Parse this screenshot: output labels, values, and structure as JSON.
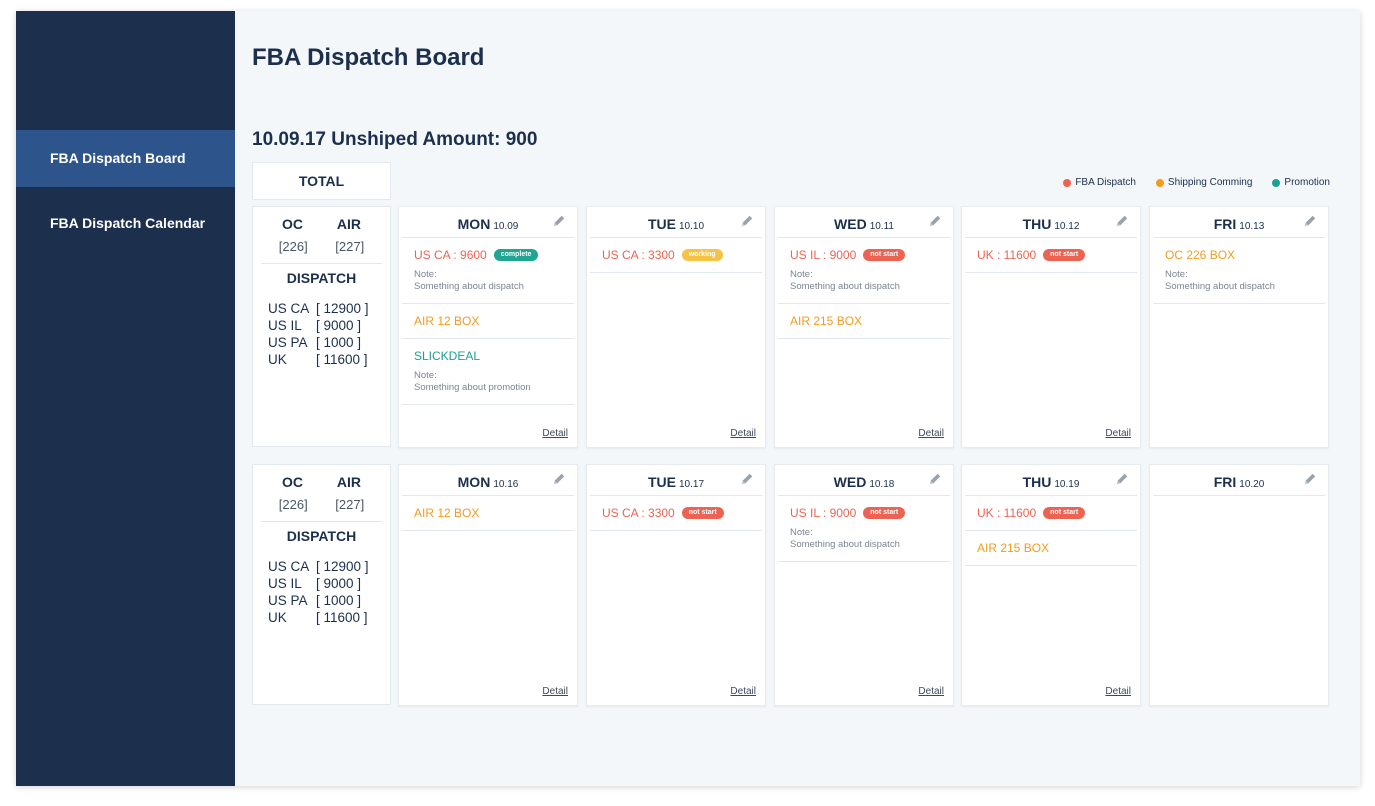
{
  "sidebar": {
    "items": [
      {
        "label": "FBA Dispatch Board",
        "active": true
      },
      {
        "label": "FBA Dispatch Calendar",
        "active": false
      }
    ]
  },
  "header": {
    "title": "FBA Dispatch Board",
    "subtitle": "10.09.17 Unshiped Amount: 900"
  },
  "total_label": "TOTAL",
  "legend": [
    {
      "label": "FBA Dispatch",
      "color": "#ec6353"
    },
    {
      "label": "Shipping Comming",
      "color": "#f29c1f"
    },
    {
      "label": "Promotion",
      "color": "#1e9f93"
    }
  ],
  "weeks": [
    {
      "summary": {
        "oc_label": "OC",
        "air_label": "AIR",
        "oc_value": "[226]",
        "air_value": "[227]",
        "dispatch_label": "DISPATCH",
        "rows": [
          {
            "key": "US CA",
            "value": "[ 12900 ]"
          },
          {
            "key": "US IL",
            "value": "[ 9000 ]"
          },
          {
            "key": "US PA",
            "value": "[ 1000 ]"
          },
          {
            "key": "UK",
            "value": "[ 11600 ]"
          }
        ]
      },
      "days": [
        {
          "name": "MON",
          "date": "10.09",
          "detail": "Detail",
          "entries": [
            {
              "title": "US CA : 9600",
              "color": "red",
              "badge": "complete",
              "badge_type": "complete",
              "note_label": "Note:",
              "note": "Something about dispatch"
            },
            {
              "title": "AIR 12 BOX",
              "color": "orange"
            },
            {
              "title": "SLICKDEAL",
              "color": "teal",
              "note_label": "Note:",
              "note": "Something about promotion"
            }
          ]
        },
        {
          "name": "TUE",
          "date": "10.10",
          "detail": "Detail",
          "entries": [
            {
              "title": "US CA : 3300",
              "color": "red",
              "badge": "working",
              "badge_type": "working"
            }
          ]
        },
        {
          "name": "WED",
          "date": "10.11",
          "detail": "Detail",
          "entries": [
            {
              "title": "US IL : 9000",
              "color": "red",
              "badge": "not start",
              "badge_type": "notstart",
              "note_label": "Note:",
              "note": "Something about dispatch"
            },
            {
              "title": "AIR 215 BOX",
              "color": "orange"
            }
          ]
        },
        {
          "name": "THU",
          "date": "10.12",
          "detail": "Detail",
          "entries": [
            {
              "title": "UK : 11600",
              "color": "red",
              "badge": "not start",
              "badge_type": "notstart"
            }
          ]
        },
        {
          "name": "FRI",
          "date": "10.13",
          "detail": "",
          "entries": [
            {
              "title": "OC 226 BOX",
              "color": "orange",
              "note_label": "Note:",
              "note": "Something about dispatch"
            }
          ]
        }
      ]
    },
    {
      "summary": {
        "oc_label": "OC",
        "air_label": "AIR",
        "oc_value": "[226]",
        "air_value": "[227]",
        "dispatch_label": "DISPATCH",
        "rows": [
          {
            "key": "US CA",
            "value": "[ 12900 ]"
          },
          {
            "key": "US IL",
            "value": "[ 9000 ]"
          },
          {
            "key": "US PA",
            "value": "[ 1000 ]"
          },
          {
            "key": "UK",
            "value": "[ 11600 ]"
          }
        ]
      },
      "days": [
        {
          "name": "MON",
          "date": "10.16",
          "detail": "Detail",
          "entries": [
            {
              "title": "AIR 12 BOX",
              "color": "orange"
            }
          ]
        },
        {
          "name": "TUE",
          "date": "10.17",
          "detail": "Detail",
          "entries": [
            {
              "title": "US CA : 3300",
              "color": "red",
              "badge": "not start",
              "badge_type": "notstart"
            }
          ]
        },
        {
          "name": "WED",
          "date": "10.18",
          "detail": "Detail",
          "entries": [
            {
              "title": "US IL : 9000",
              "color": "red",
              "badge": "not start",
              "badge_type": "notstart",
              "note_label": "Note:",
              "note": "Something about dispatch"
            }
          ]
        },
        {
          "name": "THU",
          "date": "10.19",
          "detail": "Detail",
          "entries": [
            {
              "title": "UK : 11600",
              "color": "red",
              "badge": "not start",
              "badge_type": "notstart"
            },
            {
              "title": "AIR 215 BOX",
              "color": "orange"
            }
          ]
        },
        {
          "name": "FRI",
          "date": "10.20",
          "detail": "",
          "entries": []
        }
      ]
    }
  ]
}
